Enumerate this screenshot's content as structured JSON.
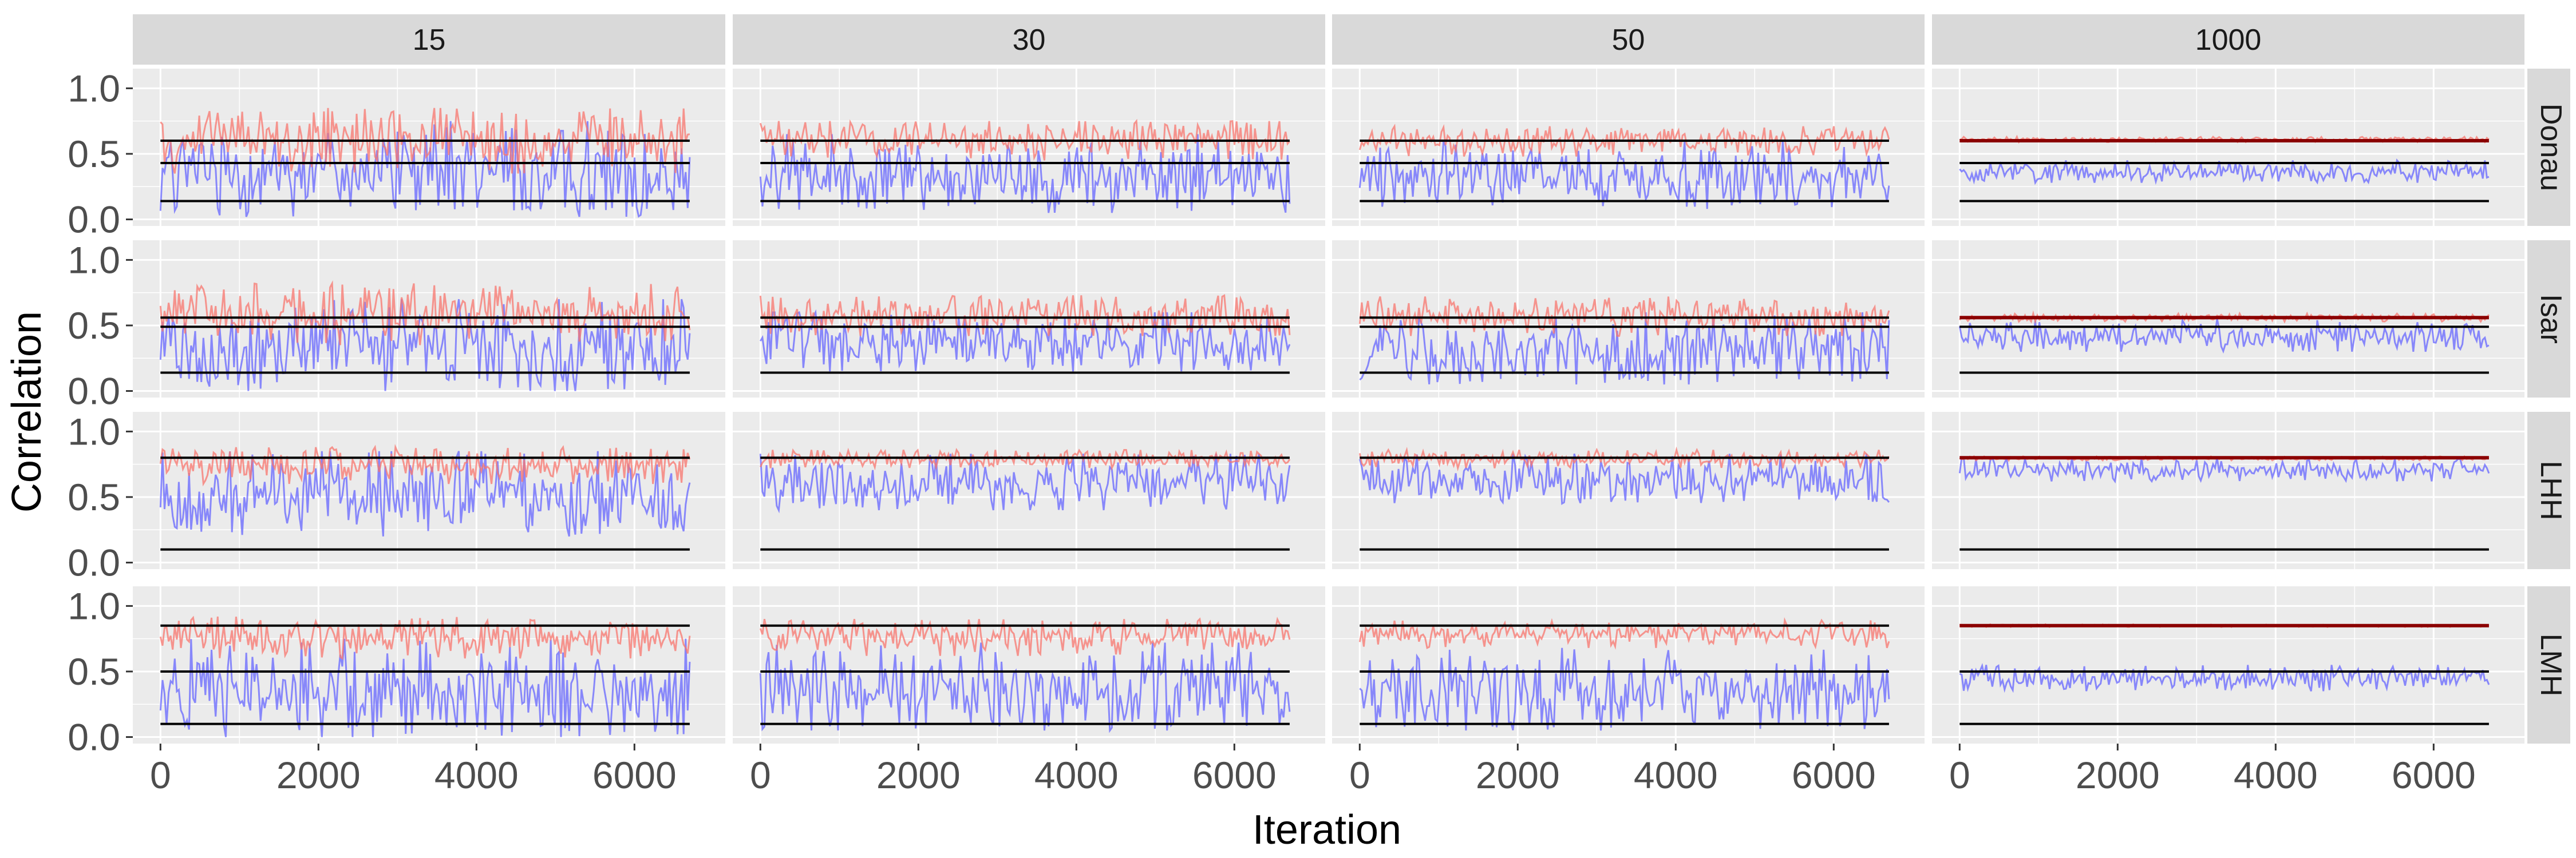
{
  "chart_data": {
    "type": "line",
    "xlabel": "Iteration",
    "ylabel": "Correlation",
    "columns": [
      "15",
      "30",
      "50",
      "1000"
    ],
    "rows": [
      "Donau",
      "Isar",
      "LHH",
      "LMH"
    ],
    "x_ticks": [
      0,
      2000,
      4000,
      6000
    ],
    "y_ticks": [
      "0.0",
      "0.5",
      "1.0"
    ],
    "xlim": [
      -350,
      7150
    ],
    "ylim": [
      -0.05,
      1.15
    ],
    "iterations": 6700,
    "grid": true,
    "colors": {
      "red_series": "#f8766d",
      "blue_series": "#6666ff",
      "reference_line": "#000000",
      "mean_line_red": "#8b0000",
      "panel_bg": "#ebebeb",
      "strip_bg": "#d9d9d9",
      "grid": "#ffffff"
    },
    "reference_lines": {
      "Donau": [
        0.14,
        0.43,
        0.6
      ],
      "Isar": [
        0.14,
        0.49,
        0.56
      ],
      "LHH": [
        0.1,
        0.8
      ],
      "LMH": [
        0.1,
        0.5,
        0.85
      ]
    },
    "bands": {
      "Donau": {
        "red": {
          "15": [
            0.35,
            0.85
          ],
          "30": [
            0.45,
            0.75
          ],
          "50": [
            0.48,
            0.71
          ],
          "1000": [
            0.59,
            0.63
          ]
        },
        "blue": {
          "15": [
            0.02,
            0.75
          ],
          "30": [
            0.05,
            0.65
          ],
          "50": [
            0.08,
            0.6
          ],
          "1000": [
            0.28,
            0.45
          ]
        }
      },
      "Isar": {
        "red": {
          "15": [
            0.35,
            0.82
          ],
          "30": [
            0.42,
            0.73
          ],
          "50": [
            0.42,
            0.72
          ],
          "1000": [
            0.53,
            0.59
          ]
        },
        "blue": {
          "15": [
            0.0,
            0.7
          ],
          "30": [
            0.15,
            0.6
          ],
          "50": [
            0.05,
            0.6
          ],
          "1000": [
            0.3,
            0.55
          ]
        }
      },
      "LHH": {
        "red": {
          "15": [
            0.6,
            0.88
          ],
          "30": [
            0.72,
            0.86
          ],
          "50": [
            0.72,
            0.86
          ],
          "1000": [
            0.78,
            0.81
          ]
        },
        "blue": {
          "15": [
            0.2,
            0.85
          ],
          "30": [
            0.4,
            0.83
          ],
          "50": [
            0.45,
            0.83
          ],
          "1000": [
            0.62,
            0.8
          ]
        }
      },
      "LMH": {
        "red": {
          "15": [
            0.6,
            0.92
          ],
          "30": [
            0.62,
            0.9
          ],
          "50": [
            0.68,
            0.89
          ],
          "1000": [
            0.84,
            0.86
          ]
        },
        "blue": {
          "15": [
            0.0,
            0.75
          ],
          "30": [
            0.05,
            0.72
          ],
          "50": [
            0.05,
            0.68
          ],
          "1000": [
            0.35,
            0.55
          ]
        }
      }
    }
  }
}
